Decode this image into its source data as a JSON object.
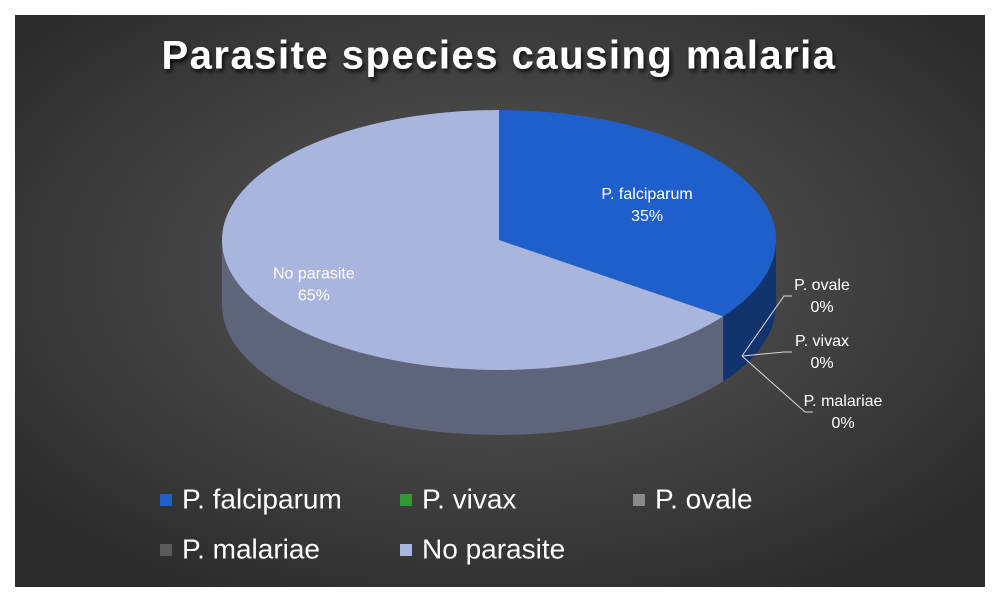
{
  "chart_data": {
    "type": "pie3d",
    "title": "Parasite species causing malaria",
    "categories": [
      "P. falciparum",
      "P. vivax",
      "P. ovale",
      "P. malariae",
      "No parasite"
    ],
    "values": [
      35,
      0,
      0,
      0,
      65
    ],
    "value_labels": [
      "35%",
      "0%",
      "0%",
      "0%",
      "65%"
    ],
    "colors": [
      "#1f5fc9",
      "#2f9a35",
      "#8a8a8a",
      "#5a5a5a",
      "#aab5dd"
    ],
    "legend": "bottom"
  }
}
